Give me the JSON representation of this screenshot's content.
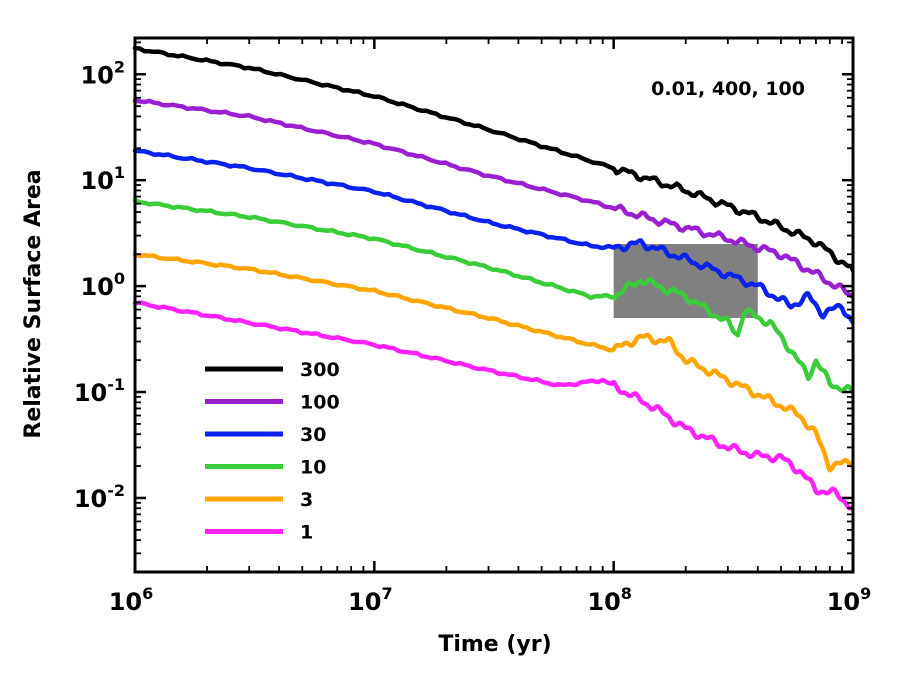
{
  "chart_data": {
    "type": "line",
    "xscale": "log",
    "yscale": "log",
    "xlabel": "Time (yr)",
    "ylabel": "Relative Surface Area",
    "annotation": "0.01, 400, 100",
    "xlim": [
      1000000,
      1000000000
    ],
    "ylim": [
      0.002,
      220
    ],
    "x_ticks": [
      {
        "value": 1000000,
        "base": "10",
        "exp": "6"
      },
      {
        "value": 10000000,
        "base": "10",
        "exp": "7"
      },
      {
        "value": 100000000,
        "base": "10",
        "exp": "8"
      },
      {
        "value": 1000000000,
        "base": "10",
        "exp": "9"
      }
    ],
    "y_ticks": [
      {
        "value": 0.01,
        "base": "10",
        "exp": "-2"
      },
      {
        "value": 0.1,
        "base": "10",
        "exp": "-1"
      },
      {
        "value": 1,
        "base": "10",
        "exp": "0"
      },
      {
        "value": 10,
        "base": "10",
        "exp": "1"
      },
      {
        "value": 100,
        "base": "10",
        "exp": "2"
      }
    ],
    "shaded_region": {
      "x": [
        100000000,
        400000000
      ],
      "y": [
        0.5,
        2.5
      ],
      "color": "#808080"
    },
    "series": [
      {
        "name": "300",
        "color": "#000000",
        "points": [
          [
            1000000,
            175
          ],
          [
            3000000,
            115
          ],
          [
            10000000,
            62
          ],
          [
            30000000,
            30
          ],
          [
            100000000,
            13
          ],
          [
            200000000,
            8.0
          ],
          [
            400000000,
            4.5
          ],
          [
            700000000,
            2.6
          ],
          [
            1000000000,
            1.4
          ]
        ]
      },
      {
        "name": "100",
        "color": "#9a1fd0",
        "points": [
          [
            1000000,
            57
          ],
          [
            3000000,
            40
          ],
          [
            10000000,
            22
          ],
          [
            30000000,
            11
          ],
          [
            80000000,
            6.3
          ],
          [
            150000000,
            4.2
          ],
          [
            300000000,
            2.8
          ],
          [
            500000000,
            2.0
          ],
          [
            700000000,
            1.3
          ],
          [
            1000000000,
            0.8
          ]
        ]
      },
      {
        "name": "30",
        "color": "#0a22ee",
        "points": [
          [
            1000000,
            19
          ],
          [
            3000000,
            13
          ],
          [
            10000000,
            7.8
          ],
          [
            30000000,
            4.0
          ],
          [
            80000000,
            2.4
          ],
          [
            100000000,
            2.3
          ],
          [
            130000000,
            2.55
          ],
          [
            200000000,
            1.8
          ],
          [
            400000000,
            1.0
          ],
          [
            550000000,
            0.65
          ],
          [
            650000000,
            0.8
          ],
          [
            750000000,
            0.55
          ],
          [
            900000000,
            0.65
          ],
          [
            1000000000,
            0.45
          ]
        ]
      },
      {
        "name": "10",
        "color": "#3acd3a",
        "points": [
          [
            1000000,
            6.3
          ],
          [
            3000000,
            4.5
          ],
          [
            10000000,
            2.8
          ],
          [
            30000000,
            1.5
          ],
          [
            80000000,
            0.8
          ],
          [
            100000000,
            0.8
          ],
          [
            130000000,
            1.15
          ],
          [
            200000000,
            0.8
          ],
          [
            300000000,
            0.45
          ],
          [
            330000000,
            0.35
          ],
          [
            350000000,
            0.58
          ],
          [
            450000000,
            0.45
          ],
          [
            550000000,
            0.25
          ],
          [
            650000000,
            0.14
          ],
          [
            700000000,
            0.2
          ],
          [
            800000000,
            0.12
          ],
          [
            1000000000,
            0.1
          ]
        ]
      },
      {
        "name": "3",
        "color": "#ffa500",
        "points": [
          [
            1000000,
            2.0
          ],
          [
            3000000,
            1.45
          ],
          [
            10000000,
            0.9
          ],
          [
            30000000,
            0.5
          ],
          [
            80000000,
            0.28
          ],
          [
            100000000,
            0.25
          ],
          [
            130000000,
            0.33
          ],
          [
            170000000,
            0.3
          ],
          [
            200000000,
            0.2
          ],
          [
            300000000,
            0.13
          ],
          [
            400000000,
            0.095
          ],
          [
            500000000,
            0.075
          ],
          [
            600000000,
            0.06
          ],
          [
            700000000,
            0.04
          ],
          [
            800000000,
            0.02
          ],
          [
            1000000000,
            0.022
          ]
        ]
      },
      {
        "name": "1",
        "color": "#ff22ff",
        "points": [
          [
            1000000,
            0.7
          ],
          [
            3000000,
            0.45
          ],
          [
            10000000,
            0.28
          ],
          [
            30000000,
            0.16
          ],
          [
            60000000,
            0.115
          ],
          [
            90000000,
            0.13
          ],
          [
            150000000,
            0.07
          ],
          [
            200000000,
            0.045
          ],
          [
            300000000,
            0.03
          ],
          [
            400000000,
            0.025
          ],
          [
            500000000,
            0.024
          ],
          [
            600000000,
            0.018
          ],
          [
            700000000,
            0.012
          ],
          [
            850000000,
            0.011
          ],
          [
            1000000000,
            0.008
          ]
        ]
      }
    ]
  }
}
